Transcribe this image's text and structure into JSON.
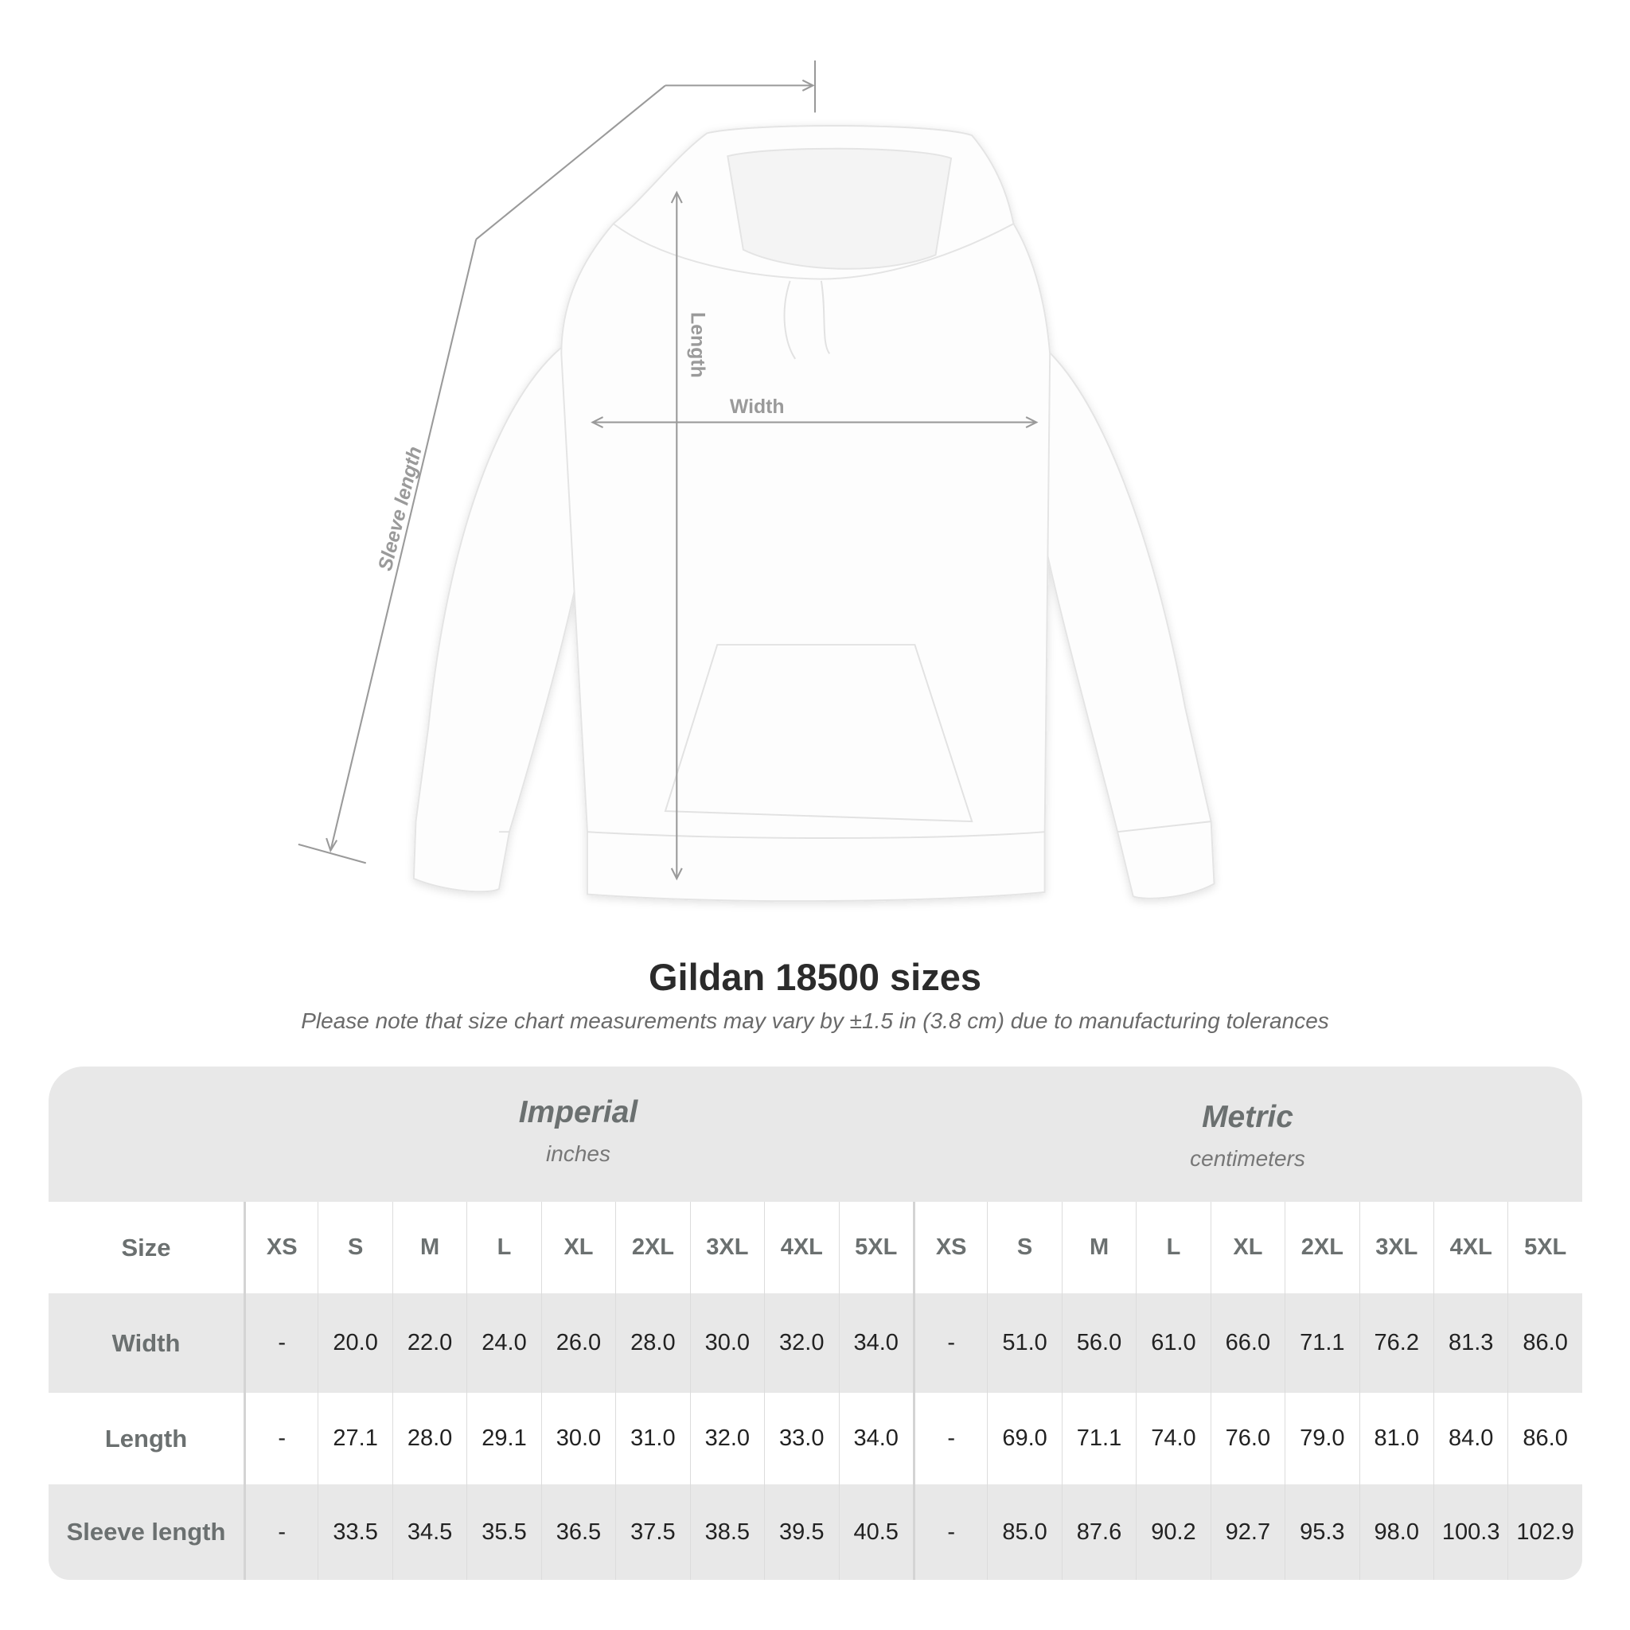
{
  "diagram": {
    "labels": {
      "length": "Length",
      "width": "Width",
      "sleeve_length": "Sleeve length"
    },
    "garment_color": "#ffffff",
    "measure_line_color": "#9a9a9a"
  },
  "title": "Gildan 18500 sizes",
  "note": "Please note that size chart measurements may vary by ±1.5 in (3.8 cm) due to manufacturing tolerances",
  "table": {
    "imperial": {
      "name": "Imperial",
      "unit": "inches"
    },
    "metric": {
      "name": "Metric",
      "unit": "centimeters"
    },
    "size_label": "Size",
    "sizes": [
      "XS",
      "S",
      "M",
      "L",
      "XL",
      "2XL",
      "3XL",
      "4XL",
      "5XL"
    ],
    "rows": [
      {
        "label": "Width",
        "imperial": [
          "-",
          "20.0",
          "22.0",
          "24.0",
          "26.0",
          "28.0",
          "30.0",
          "32.0",
          "34.0"
        ],
        "metric": [
          "-",
          "51.0",
          "56.0",
          "61.0",
          "66.0",
          "71.1",
          "76.2",
          "81.3",
          "86.0"
        ]
      },
      {
        "label": "Length",
        "imperial": [
          "-",
          "27.1",
          "28.0",
          "29.1",
          "30.0",
          "31.0",
          "32.0",
          "33.0",
          "34.0"
        ],
        "metric": [
          "-",
          "69.0",
          "71.1",
          "74.0",
          "76.0",
          "79.0",
          "81.0",
          "84.0",
          "86.0"
        ]
      },
      {
        "label": "Sleeve length",
        "imperial": [
          "-",
          "33.5",
          "34.5",
          "35.5",
          "36.5",
          "37.5",
          "38.5",
          "39.5",
          "40.5"
        ],
        "metric": [
          "-",
          "85.0",
          "87.6",
          "90.2",
          "92.7",
          "95.3",
          "98.0",
          "100.3",
          "102.9"
        ]
      }
    ],
    "colors": {
      "band": "#e8e8e8",
      "label_text": "#6b7070",
      "value_text": "#222222"
    }
  }
}
